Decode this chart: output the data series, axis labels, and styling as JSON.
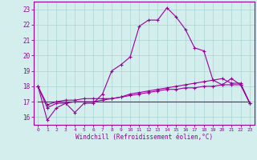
{
  "x": [
    0,
    1,
    2,
    3,
    4,
    5,
    6,
    7,
    8,
    9,
    10,
    11,
    12,
    13,
    14,
    15,
    16,
    17,
    18,
    19,
    20,
    21,
    22,
    23
  ],
  "line1": [
    18.0,
    15.8,
    16.6,
    16.9,
    16.3,
    16.9,
    16.9,
    17.5,
    19.0,
    19.4,
    19.9,
    21.9,
    22.3,
    22.3,
    23.1,
    22.5,
    21.7,
    20.5,
    20.3,
    18.4,
    18.1,
    18.5,
    18.1,
    16.9
  ],
  "line2": [
    18.0,
    16.6,
    16.9,
    16.9,
    17.0,
    17.0,
    17.0,
    17.1,
    17.2,
    17.3,
    17.5,
    17.6,
    17.7,
    17.8,
    17.9,
    18.0,
    18.1,
    18.2,
    18.3,
    18.4,
    18.5,
    18.2,
    18.2,
    16.9
  ],
  "line3": [
    18.0,
    16.8,
    17.0,
    17.1,
    17.1,
    17.2,
    17.2,
    17.2,
    17.2,
    17.3,
    17.4,
    17.5,
    17.6,
    17.7,
    17.8,
    17.8,
    17.9,
    17.9,
    18.0,
    18.0,
    18.1,
    18.1,
    18.1,
    16.9
  ],
  "line4": [
    17.0,
    17.0,
    17.0,
    17.0,
    17.0,
    17.0,
    17.0,
    17.0,
    17.0,
    17.0,
    17.0,
    17.0,
    17.0,
    17.0,
    17.0,
    17.0,
    17.0,
    17.0,
    17.0,
    17.0,
    17.0,
    17.0,
    17.0,
    17.0
  ],
  "line_color": "#990099",
  "bg_color": "#d4eeee",
  "grid_color": "#aad4d4",
  "xlabel": "Windchill (Refroidissement éolien,°C)",
  "ylim": [
    15.5,
    23.5
  ],
  "xlim": [
    -0.5,
    23.5
  ],
  "yticks": [
    16,
    17,
    18,
    19,
    20,
    21,
    22,
    23
  ],
  "xticks": [
    0,
    1,
    2,
    3,
    4,
    5,
    6,
    7,
    8,
    9,
    10,
    11,
    12,
    13,
    14,
    15,
    16,
    17,
    18,
    19,
    20,
    21,
    22,
    23
  ]
}
